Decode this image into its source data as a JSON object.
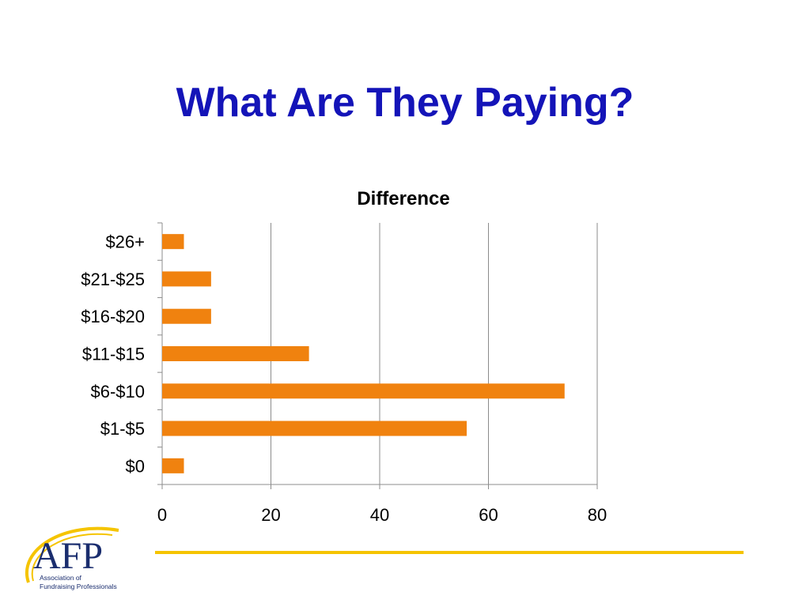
{
  "slide": {
    "title": "What Are They Paying?"
  },
  "chart_data": {
    "type": "bar",
    "orientation": "horizontal",
    "title": "Difference",
    "categories": [
      "$0",
      "$1-$5",
      "$6-$10",
      "$11-$15",
      "$16-$20",
      "$21-$25",
      "$26+"
    ],
    "values": [
      4,
      56,
      74,
      27,
      9,
      9,
      4
    ],
    "xlim": [
      0,
      80
    ],
    "xticks": [
      "0",
      "20",
      "40",
      "60",
      "80"
    ],
    "xtick_values": [
      0,
      20,
      40,
      60,
      80
    ],
    "grid": "vertical",
    "legend": "none",
    "bar_color": "#f0820f"
  },
  "footer": {
    "line_color": "#f5c400",
    "logo_text": "AFP",
    "logo_subtitle_1": "Association of",
    "logo_subtitle_2": "Fundraising Professionals",
    "logo_color": "#1a2d6e",
    "logo_arc_color": "#f5c400"
  }
}
